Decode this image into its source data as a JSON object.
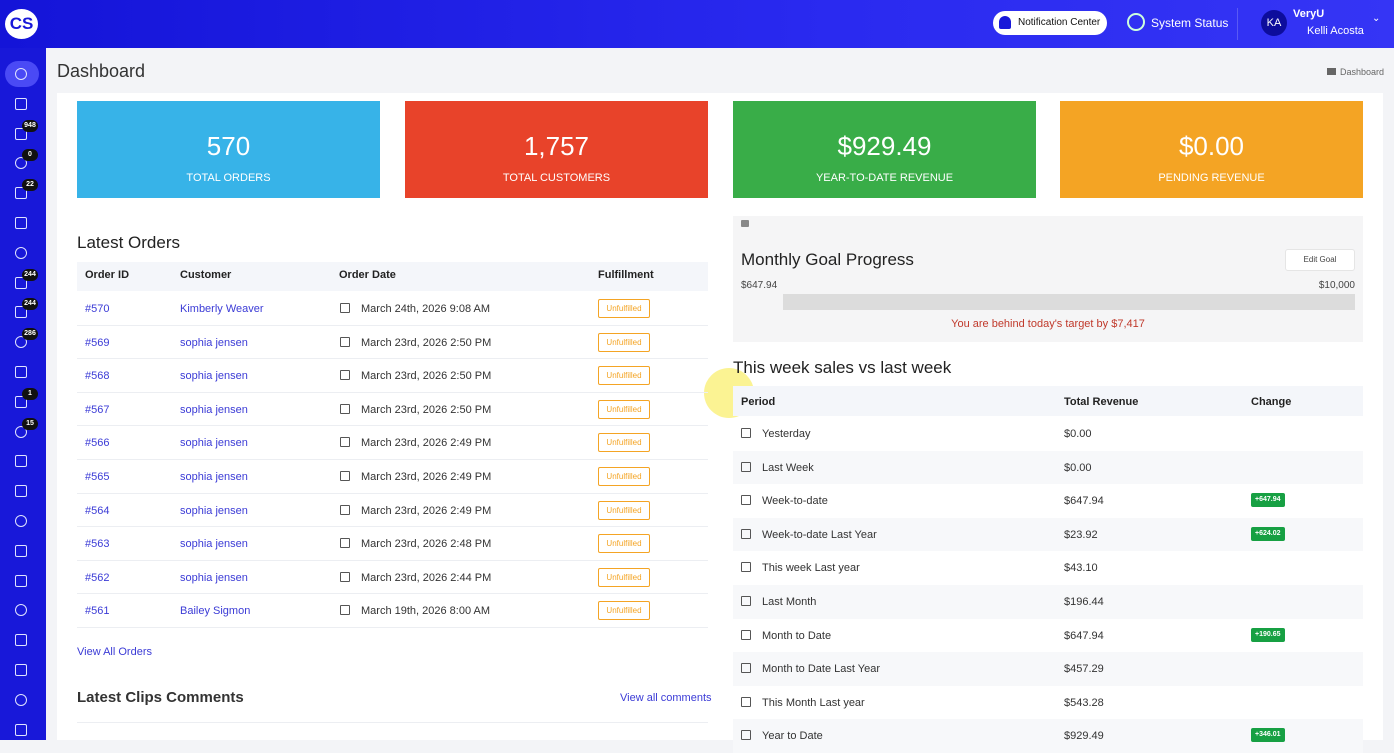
{
  "header": {
    "logo": "CS",
    "notification_center": "Notification Center",
    "system_status": "System Status",
    "user": {
      "initials": "KA",
      "org": "VeryU",
      "name": "Kelli Acosta"
    }
  },
  "sidebar": {
    "badges": [
      {
        "icon": 2,
        "count": "948"
      },
      {
        "icon": 3,
        "count": "0"
      },
      {
        "icon": 4,
        "count": "22"
      },
      {
        "icon": 7,
        "count": "244"
      },
      {
        "icon": 8,
        "count": "244"
      },
      {
        "icon": 9,
        "count": "286"
      },
      {
        "icon": 11,
        "count": "1"
      },
      {
        "icon": 12,
        "count": "15"
      }
    ]
  },
  "page": {
    "title": "Dashboard",
    "breadcrumb": "Dashboard"
  },
  "stats": [
    {
      "value": "570",
      "label": "TOTAL ORDERS",
      "color": "#37b3e8"
    },
    {
      "value": "1,757",
      "label": "TOTAL CUSTOMERS",
      "color": "#e8432a"
    },
    {
      "value": "$929.49",
      "label": "YEAR-TO-DATE REVENUE",
      "color": "#39ad48"
    },
    {
      "value": "$0.00",
      "label": "PENDING REVENUE",
      "color": "#f4a424"
    }
  ],
  "latest_orders": {
    "title": "Latest Orders",
    "columns": [
      "Order ID",
      "Customer",
      "Order Date",
      "Fulfillment"
    ],
    "rows": [
      [
        "#570",
        "Kimberly Weaver",
        "March 24th, 2026 9:08 AM",
        "Unfulfilled"
      ],
      [
        "#569",
        "sophia jensen",
        "March 23rd, 2026 2:50 PM",
        "Unfulfilled"
      ],
      [
        "#568",
        "sophia jensen",
        "March 23rd, 2026 2:50 PM",
        "Unfulfilled"
      ],
      [
        "#567",
        "sophia jensen",
        "March 23rd, 2026 2:50 PM",
        "Unfulfilled"
      ],
      [
        "#566",
        "sophia jensen",
        "March 23rd, 2026 2:49 PM",
        "Unfulfilled"
      ],
      [
        "#565",
        "sophia jensen",
        "March 23rd, 2026 2:49 PM",
        "Unfulfilled"
      ],
      [
        "#564",
        "sophia jensen",
        "March 23rd, 2026 2:49 PM",
        "Unfulfilled"
      ],
      [
        "#563",
        "sophia jensen",
        "March 23rd, 2026 2:48 PM",
        "Unfulfilled"
      ],
      [
        "#562",
        "sophia jensen",
        "March 23rd, 2026 2:44 PM",
        "Unfulfilled"
      ],
      [
        "#561",
        "Bailey Sigmon",
        "March 19th, 2026 8:00 AM",
        "Unfulfilled"
      ]
    ],
    "view_all": "View All Orders"
  },
  "clips": {
    "title": "Latest Clips Comments",
    "view_all": "View all comments"
  },
  "goal": {
    "title": "Monthly Goal Progress",
    "edit": "Edit Goal",
    "current": "$647.94",
    "target": "$10,000",
    "message": "You are behind today's target by $7,417"
  },
  "weekly": {
    "title": "This week sales vs last week",
    "columns": [
      "Period",
      "Total Revenue",
      "Change"
    ],
    "rows": [
      [
        "Yesterday",
        "$0.00"
      ],
      [
        "Last Week",
        "$0.00"
      ],
      [
        "Week-to-date",
        "$647.94",
        "+647.94"
      ],
      [
        "Week-to-date Last Year",
        "$23.92",
        "+624.02"
      ],
      [
        "This week Last year",
        "$43.10"
      ],
      [
        "Last Month",
        "$196.44"
      ],
      [
        "Month to Date",
        "$647.94",
        "+190.65"
      ],
      [
        "Month to Date Last Year",
        "$457.29"
      ],
      [
        "This Month Last year",
        "$543.28"
      ],
      [
        "Year to Date",
        "$929.49",
        "+346.01"
      ]
    ]
  }
}
